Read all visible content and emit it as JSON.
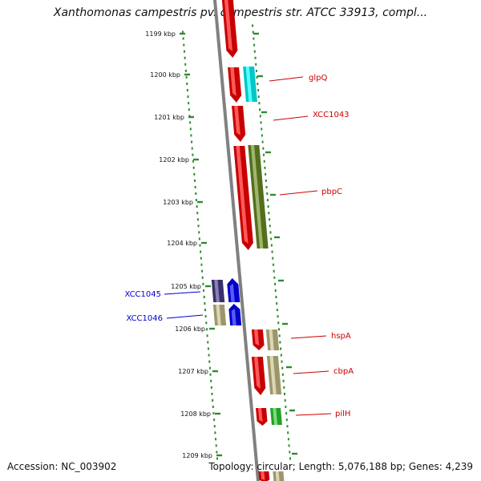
{
  "title": "Xanthomonas campestris pv. campestris str. ATCC 33913, compl...",
  "footer": {
    "accession": "Accession: NC_003902",
    "summary": "Topology: circular; Length: 5,076,188 bp; Genes: 4,239"
  },
  "ticks": [
    {
      "label": "1199 kbp"
    },
    {
      "label": "1200 kbp"
    },
    {
      "label": "1201 kbp"
    },
    {
      "label": "1202 kbp"
    },
    {
      "label": "1203 kbp"
    },
    {
      "label": "1204 kbp"
    },
    {
      "label": "1205 kbp"
    },
    {
      "label": "1206 kbp"
    },
    {
      "label": "1207 kbp"
    },
    {
      "label": "1208 kbp"
    },
    {
      "label": "1209 kbp"
    }
  ],
  "labels": [
    {
      "text": "glpQ",
      "side": "right",
      "color": "#cc0000"
    },
    {
      "text": "XCC1043",
      "side": "right",
      "color": "#cc0000"
    },
    {
      "text": "pbpC",
      "side": "right",
      "color": "#cc0000"
    },
    {
      "text": "XCC1045",
      "side": "left",
      "color": "#0000cc"
    },
    {
      "text": "XCC1046",
      "side": "left",
      "color": "#0000cc"
    },
    {
      "text": "hspA",
      "side": "right",
      "color": "#cc0000"
    },
    {
      "text": "cbpA",
      "side": "right",
      "color": "#cc0000"
    },
    {
      "text": "pilH",
      "side": "right",
      "color": "#cc0000"
    }
  ],
  "colors": {
    "backbone": "#808080",
    "dots": "#2e8b2e",
    "forward_strand": "#ff0000",
    "reverse_strand": "#0000ff",
    "cog_cyan": "#00ffff",
    "cog_olive": "#6b8e23",
    "cog_khaki": "#c8c08a",
    "cog_green": "#33cc33",
    "cog_navy": "#483d8b"
  }
}
